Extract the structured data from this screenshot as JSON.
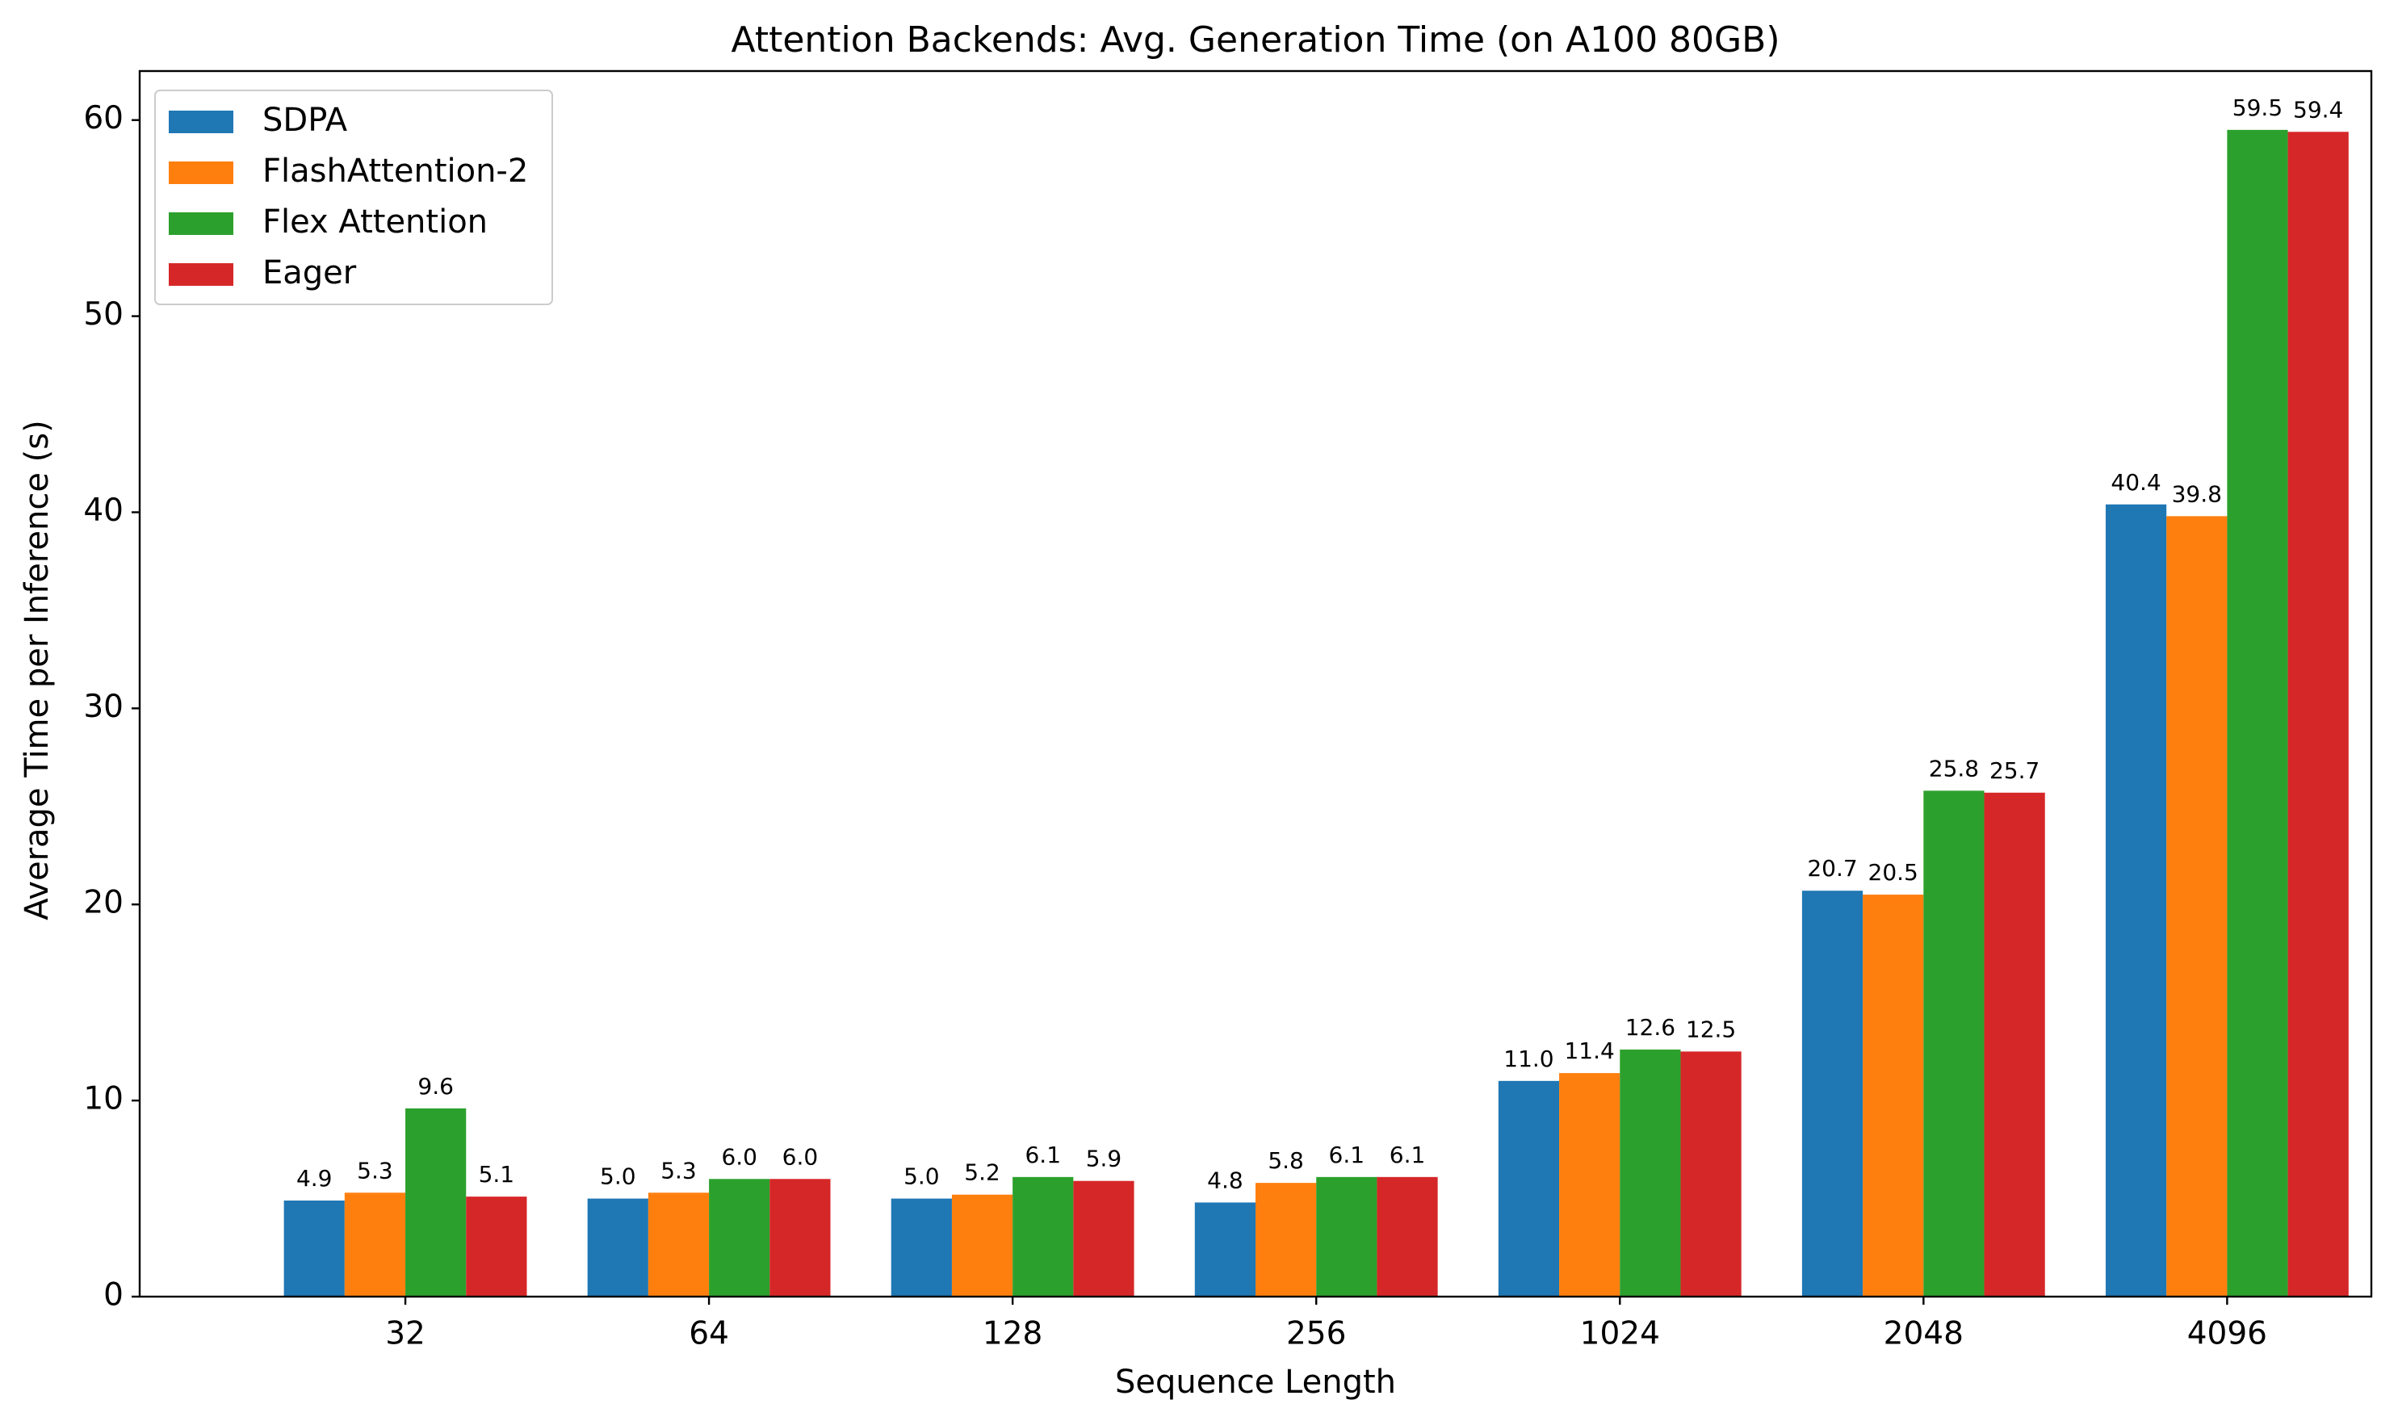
{
  "chart_data": {
    "type": "bar",
    "title": "Attention Backends: Avg. Generation Time (on A100 80GB)",
    "xlabel": "Sequence Length",
    "ylabel": "Average Time per Inference (s)",
    "categories": [
      "32",
      "64",
      "128",
      "256",
      "1024",
      "2048",
      "4096"
    ],
    "ylim": [
      0,
      62.5
    ],
    "yticks": [
      0,
      10,
      20,
      30,
      40,
      50,
      60
    ],
    "grid": false,
    "legend_position": "top-left",
    "series": [
      {
        "name": "SDPA",
        "color": "#1f77b4",
        "values": [
          4.9,
          5.0,
          5.0,
          4.8,
          11.0,
          20.7,
          40.4
        ],
        "labels": [
          "4.9",
          "5.0",
          "5.0",
          "4.8",
          "11.0",
          "20.7",
          "40.4"
        ]
      },
      {
        "name": "FlashAttention-2",
        "color": "#ff7f0e",
        "values": [
          5.3,
          5.3,
          5.2,
          5.8,
          11.4,
          20.5,
          39.8
        ],
        "labels": [
          "5.3",
          "5.3",
          "5.2",
          "5.8",
          "11.4",
          "20.5",
          "39.8"
        ]
      },
      {
        "name": "Flex Attention",
        "color": "#2ca02c",
        "values": [
          9.6,
          6.0,
          6.1,
          6.1,
          12.6,
          25.8,
          59.5
        ],
        "labels": [
          "9.6",
          "6.0",
          "6.1",
          "6.1",
          "12.6",
          "25.8",
          "59.5"
        ]
      },
      {
        "name": "Eager",
        "color": "#d62728",
        "values": [
          5.1,
          6.0,
          5.9,
          6.1,
          12.5,
          25.7,
          59.4
        ],
        "labels": [
          "5.1",
          "6.0",
          "5.9",
          "6.1",
          "12.5",
          "25.7",
          "59.4"
        ]
      }
    ]
  }
}
